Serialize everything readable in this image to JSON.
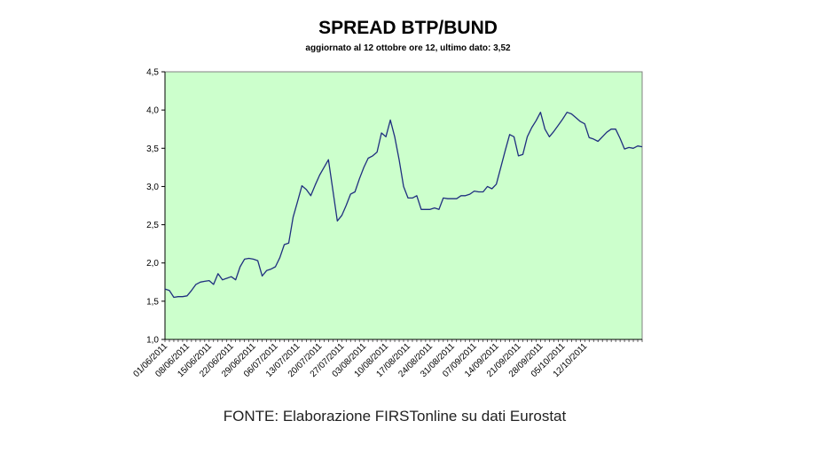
{
  "chart_data": {
    "type": "line",
    "title": "SPREAD BTP/BUND",
    "subtitle": "aggiornato al 12 ottobre ore 12, ultimo dato: 3,52",
    "xlabel": "",
    "ylabel": "",
    "ylim": [
      1.0,
      4.5
    ],
    "yticks": [
      "1,0",
      "1,5",
      "2,0",
      "2,5",
      "3,0",
      "3,5",
      "4,0",
      "4,5"
    ],
    "xtick_labels": [
      "01/06/2011",
      "08/06/2011",
      "15/06/2011",
      "22/06/2011",
      "29/06/2011",
      "06/07/2011",
      "13/07/2011",
      "20/07/2011",
      "27/07/2011",
      "03/08/2011",
      "10/08/2011",
      "17/08/2011",
      "24/08/2011",
      "31/08/2011",
      "07/09/2011",
      "14/09/2011",
      "21/09/2011",
      "28/09/2011",
      "05/10/2011",
      "12/10/2011"
    ],
    "grid": false,
    "legend": "none",
    "plot_background": "#ccffcc",
    "line_color": "#1f2f7f",
    "series": [
      {
        "values": [
          1.66,
          1.64,
          1.55,
          1.56,
          1.56,
          1.57,
          1.64,
          1.72,
          1.75,
          1.76,
          1.77,
          1.72,
          1.86,
          1.78,
          1.8,
          1.82,
          1.78,
          1.95,
          2.05,
          2.06,
          2.05,
          2.03,
          1.83,
          1.9,
          1.92,
          1.95,
          2.07,
          2.24,
          2.26,
          2.6,
          2.8,
          3.01,
          2.96,
          2.88,
          3.02,
          3.15,
          3.25,
          3.35,
          2.95,
          2.55,
          2.62,
          2.75,
          2.9,
          2.93,
          3.1,
          3.25,
          3.37,
          3.4,
          3.45,
          3.7,
          3.65,
          3.87,
          3.65,
          3.35,
          3.0,
          2.85,
          2.85,
          2.88,
          2.7,
          2.7,
          2.7,
          2.72,
          2.7,
          2.85,
          2.84,
          2.84,
          2.84,
          2.88,
          2.88,
          2.9,
          2.94,
          2.93,
          2.93,
          3.0,
          2.97,
          3.03,
          3.25,
          3.47,
          3.68,
          3.65,
          3.4,
          3.42,
          3.65,
          3.77,
          3.86,
          3.97,
          3.75,
          3.65,
          3.72,
          3.8,
          3.88,
          3.97,
          3.95,
          3.9,
          3.85,
          3.82,
          3.64,
          3.62,
          3.59,
          3.65,
          3.71,
          3.75,
          3.75,
          3.63,
          3.49,
          3.51,
          3.5,
          3.53,
          3.52
        ]
      }
    ]
  },
  "source_note": "FONTE: Elaborazione FIRSTonline su dati Eurostat"
}
